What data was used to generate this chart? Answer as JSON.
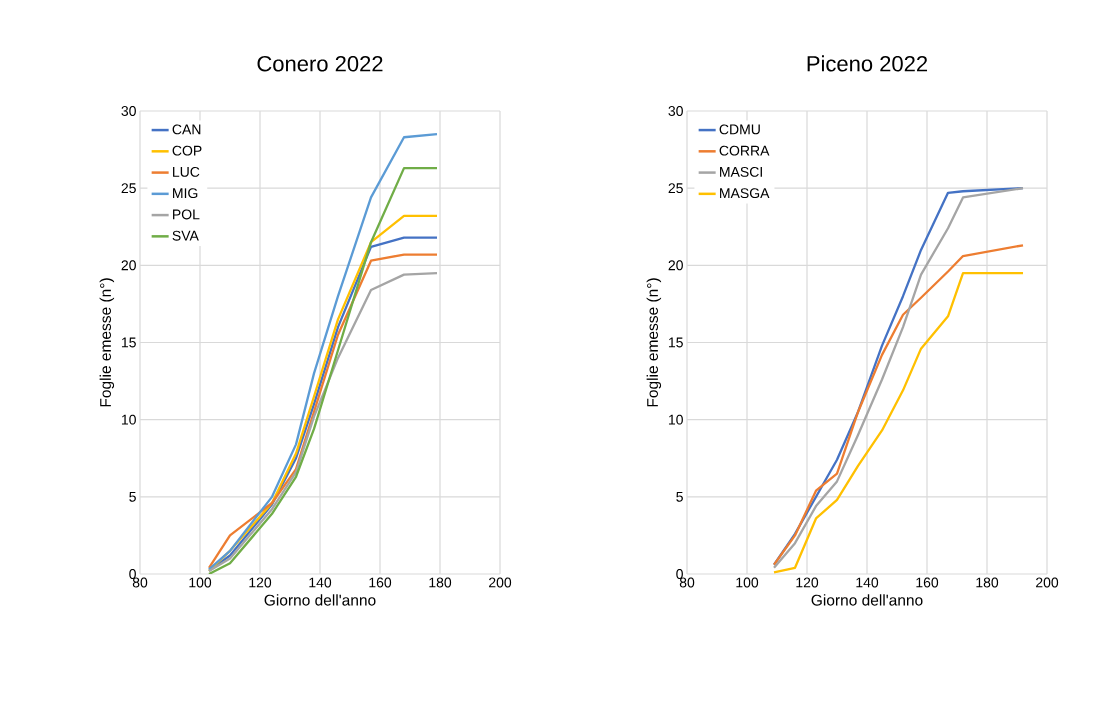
{
  "chart_data": [
    {
      "type": "line",
      "title": "Conero 2022",
      "xlabel": "Giorno dell'anno",
      "ylabel": "Foglie emesse (n°)",
      "x": [
        103,
        110,
        124,
        132,
        138,
        146,
        157,
        168,
        179
      ],
      "series": [
        {
          "name": "CAN",
          "color": "#4472c4",
          "values": [
            0.2,
            1.2,
            4.5,
            7.5,
            11,
            16,
            21.2,
            21.8,
            21.8
          ]
        },
        {
          "name": "COP",
          "color": "#ffc000",
          "values": [
            0.2,
            1.5,
            4.6,
            7.8,
            11.5,
            16.5,
            21.5,
            23.2,
            23.2
          ]
        },
        {
          "name": "LUC",
          "color": "#ed7d31",
          "values": [
            0.4,
            2.5,
            4.6,
            6.8,
            10.5,
            15.5,
            20.3,
            20.7,
            20.7
          ]
        },
        {
          "name": "MIG",
          "color": "#5b9bd5",
          "values": [
            0.3,
            1.5,
            5,
            8.4,
            13,
            18,
            24.4,
            28.3,
            28.5
          ]
        },
        {
          "name": "POL",
          "color": "#a5a5a5",
          "values": [
            0.2,
            1,
            4.2,
            6.6,
            10.2,
            14,
            18.4,
            19.4,
            19.5
          ]
        },
        {
          "name": "SVA",
          "color": "#70ad47",
          "values": [
            0,
            0.7,
            3.9,
            6.3,
            9.4,
            14.5,
            21.5,
            26.3,
            26.3
          ]
        }
      ],
      "xlim": [
        80,
        200
      ],
      "ylim": [
        0,
        30
      ],
      "xticks": [
        80,
        100,
        120,
        140,
        160,
        180,
        200
      ],
      "yticks": [
        0,
        5,
        10,
        15,
        20,
        25,
        30
      ],
      "grid": true,
      "legend": "top left"
    },
    {
      "type": "line",
      "title": "Piceno 2022",
      "xlabel": "Giorno dell'anno",
      "ylabel": "Foglie emesse (n°)",
      "x": [
        109,
        116,
        123,
        130,
        137,
        145,
        152,
        158,
        167,
        172,
        192
      ],
      "series": [
        {
          "name": "CDMU",
          "color": "#4472c4",
          "values": [
            0.6,
            2.6,
            5,
            7.4,
            10.5,
            14.8,
            18,
            21,
            24.7,
            24.8,
            25
          ]
        },
        {
          "name": "CORRA",
          "color": "#ed7d31",
          "values": [
            0.6,
            2.5,
            5.4,
            6.5,
            10.5,
            14.2,
            16.8,
            17.9,
            19.6,
            20.6,
            21.3
          ]
        },
        {
          "name": "MASCI",
          "color": "#a5a5a5",
          "values": [
            0.4,
            2,
            4.4,
            6,
            9,
            12.6,
            16,
            19.4,
            22.4,
            24.4,
            25
          ]
        },
        {
          "name": "MASGA",
          "color": "#ffc000",
          "values": [
            0.1,
            0.4,
            3.6,
            4.8,
            7,
            9.3,
            11.9,
            14.6,
            16.7,
            19.5,
            19.5
          ]
        }
      ],
      "xlim": [
        80,
        200
      ],
      "ylim": [
        0,
        30
      ],
      "xticks": [
        80,
        100,
        120,
        140,
        160,
        180,
        200
      ],
      "yticks": [
        0,
        5,
        10,
        15,
        20,
        25,
        30
      ],
      "grid": true,
      "legend": "top left"
    }
  ]
}
